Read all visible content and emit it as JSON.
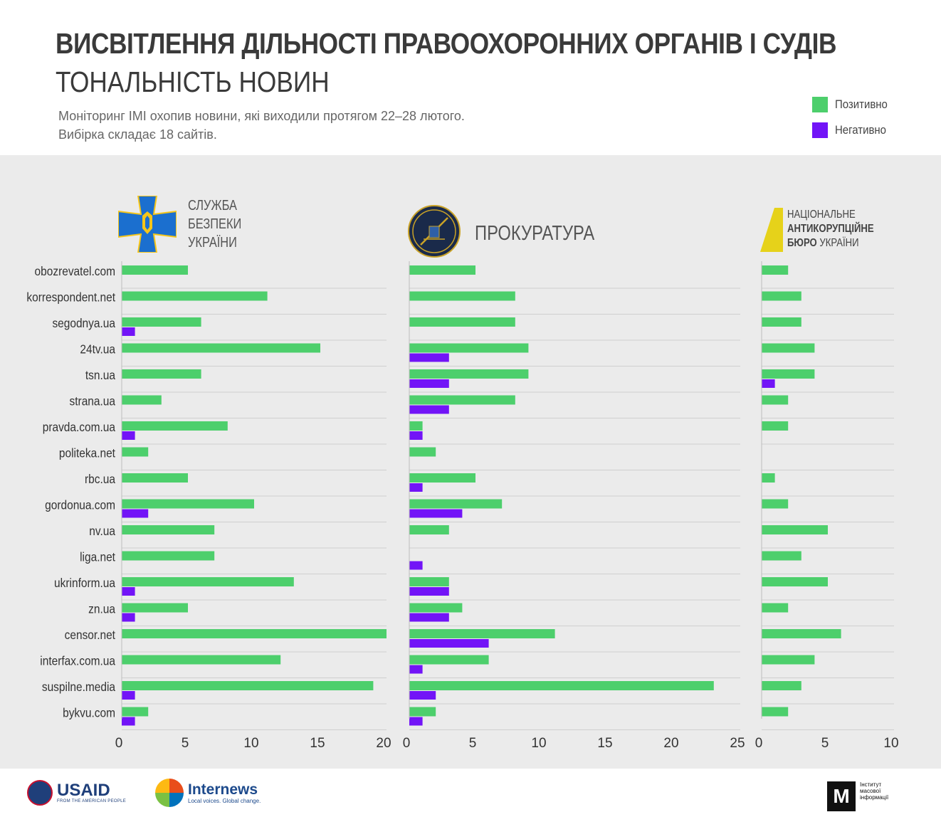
{
  "header": {
    "title": "ВИСВІТЛЕННЯ ДІЛЬНОСТІ ПРАВООХОРОННИХ ОРГАНІВ І СУДІВ",
    "subtitle": "ТОНАЛЬНІСТЬ НОВИН",
    "description_line1": "Моніторинг ІМІ охопив новини, які виходили протягом 22–28 лютого.",
    "description_line2": "Вибірка складає 18 сайтів."
  },
  "legend": {
    "positive": "Позитивно",
    "negative": "Негативно"
  },
  "colors": {
    "positive": "#4dcf6c",
    "negative": "#7214f7",
    "sbu_blue": "#1b6fcf",
    "sbu_yellow": "#f5c518",
    "nabu_yellow": "#e6d21a"
  },
  "logos": {
    "sbu": [
      "СЛУЖБА",
      "БЕЗПЕКИ",
      "УКРАЇНИ"
    ],
    "prosecutor": "ПРОКУРАТУРА",
    "nabu": [
      "НАЦІОНАЛЬНЕ",
      "АНТИКОРУПЦІЙНЕ",
      "БЮРО",
      "УКРАЇНИ"
    ]
  },
  "footer": {
    "usaid": "USAID",
    "usaid_tag": "FROM THE AMERICAN PEOPLE",
    "internews": "Internews",
    "internews_tag": "Local voices. Global change.",
    "imi_mark": "M",
    "imi_text": "Інститут масової інформації"
  },
  "chart_data": {
    "type": "bar",
    "orientation": "horizontal",
    "categories": [
      "obozrevatel.com",
      "korrespondent.net",
      "segodnya.ua",
      "24tv.ua",
      "tsn.ua",
      "strana.ua",
      "pravda.com.ua",
      "politeka.net",
      "rbc.ua",
      "gordonua.com",
      "nv.ua",
      "liga.net",
      "ukrinform.ua",
      "zn.ua",
      "censor.net",
      "interfax.com.ua",
      "suspilne.media",
      "bykvu.com"
    ],
    "panels": [
      {
        "name": "СЛУЖБА БЕЗПЕКИ УКРАЇНИ",
        "xlim": [
          0,
          20
        ],
        "ticks": [
          0,
          5,
          10,
          15,
          20
        ],
        "series": [
          {
            "name": "Позитивно",
            "values": [
              5,
              11,
              6,
              15,
              6,
              3,
              8,
              2,
              5,
              10,
              7,
              7,
              13,
              5,
              20,
              12,
              19,
              2
            ]
          },
          {
            "name": "Негативно",
            "values": [
              0,
              0,
              1,
              0,
              0,
              0,
              1,
              0,
              0,
              2,
              0,
              0,
              1,
              1,
              0,
              0,
              1,
              1
            ]
          }
        ]
      },
      {
        "name": "ПРОКУРАТУРА",
        "xlim": [
          0,
          25
        ],
        "ticks": [
          0,
          5,
          10,
          15,
          20,
          25
        ],
        "series": [
          {
            "name": "Позитивно",
            "values": [
              5,
              8,
              8,
              9,
              9,
              8,
              1,
              2,
              5,
              7,
              3,
              0,
              3,
              4,
              11,
              6,
              23,
              2
            ]
          },
          {
            "name": "Негативно",
            "values": [
              0,
              0,
              0,
              3,
              3,
              3,
              1,
              0,
              1,
              4,
              0,
              1,
              3,
              3,
              6,
              1,
              2,
              1
            ]
          }
        ]
      },
      {
        "name": "НАЦІОНАЛЬНЕ АНТИКОРУПЦІЙНЕ БЮРО УКРАЇНИ",
        "xlim": [
          0,
          10
        ],
        "ticks": [
          0,
          5,
          10
        ],
        "series": [
          {
            "name": "Позитивно",
            "values": [
              2,
              3,
              3,
              4,
              4,
              2,
              2,
              0,
              1,
              2,
              5,
              3,
              5,
              2,
              6,
              4,
              3,
              2
            ]
          },
          {
            "name": "Негативно",
            "values": [
              0,
              0,
              0,
              0,
              1,
              0,
              0,
              0,
              0,
              0,
              0,
              0,
              0,
              0,
              0,
              0,
              0,
              0
            ]
          }
        ]
      }
    ]
  }
}
